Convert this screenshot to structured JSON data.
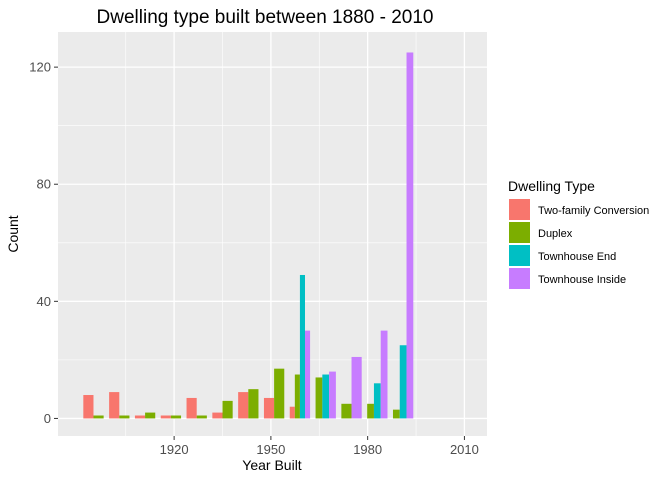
{
  "chart_data": {
    "type": "bar",
    "title": "Dwelling type built between 1880 - 2010",
    "xlabel": "Year Built",
    "ylabel": "Count",
    "x_ticks": [
      1920,
      1950,
      1980,
      2010
    ],
    "y_ticks": [
      0,
      40,
      80,
      120
    ],
    "xlim": [
      1884,
      2017
    ],
    "ylim": [
      -6,
      132
    ],
    "grid": true,
    "legend_position": "right",
    "legend_title": "Dwelling Type",
    "series": [
      {
        "name": "Two-family Conversion",
        "color": "#F8766D",
        "points": [
          [
            1895,
            8
          ],
          [
            1903,
            9
          ],
          [
            1911,
            1
          ],
          [
            1919,
            1
          ],
          [
            1927,
            7
          ],
          [
            1935,
            2
          ],
          [
            1943,
            9
          ],
          [
            1951,
            7
          ],
          [
            1959,
            4
          ]
        ]
      },
      {
        "name": "Duplex",
        "color": "#7CAE00",
        "points": [
          [
            1895,
            1
          ],
          [
            1903,
            1
          ],
          [
            1911,
            2
          ],
          [
            1919,
            1
          ],
          [
            1927,
            1
          ],
          [
            1935,
            6
          ],
          [
            1943,
            10
          ],
          [
            1951,
            17
          ],
          [
            1959,
            15
          ],
          [
            1967,
            14
          ],
          [
            1975,
            5
          ],
          [
            1983,
            5
          ],
          [
            1991,
            3
          ]
        ]
      },
      {
        "name": "Townhouse End",
        "color": "#00BFC4",
        "points": [
          [
            1959,
            49
          ],
          [
            1967,
            15
          ],
          [
            1983,
            12
          ],
          [
            1991,
            25
          ]
        ]
      },
      {
        "name": "Townhouse Inside",
        "color": "#C77CFF",
        "points": [
          [
            1959,
            30
          ],
          [
            1967,
            16
          ],
          [
            1975,
            21
          ],
          [
            1983,
            30
          ],
          [
            1991,
            125
          ]
        ]
      }
    ]
  }
}
